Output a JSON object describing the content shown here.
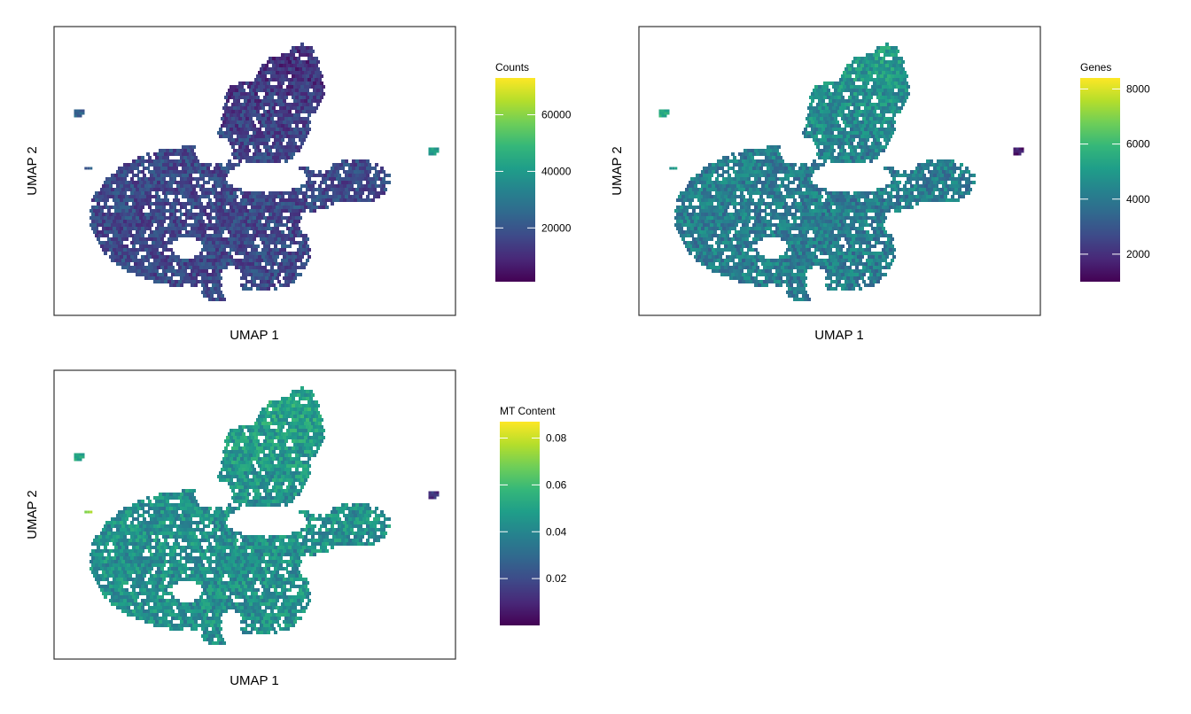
{
  "palette": {
    "viridis": [
      "#440154",
      "#482878",
      "#3e4a89",
      "#31688e",
      "#26828e",
      "#1f9e89",
      "#35b779",
      "#6ece58",
      "#b5de2b",
      "#fde725"
    ],
    "frame": "#333333",
    "tick": "#ffffff"
  },
  "chart_data": [
    {
      "type": "heatmap",
      "subtype": "hexbin-umap",
      "xlabel": "UMAP 1",
      "ylabel": "UMAP 2",
      "legend": {
        "title": "Counts",
        "range": [
          1000,
          73000
        ],
        "ticks": [
          20000,
          40000,
          60000
        ],
        "tick_labels": [
          "20000",
          "40000",
          "60000"
        ]
      },
      "value_profile": {
        "base": 0.22,
        "upper_arm": 0.14,
        "spread": 0.1
      },
      "clusters": [
        {
          "name": "outlier-left-top",
          "mean": 0.32
        },
        {
          "name": "outlier-left-mid",
          "mean": 0.3
        },
        {
          "name": "outlier-right",
          "mean": 0.55
        }
      ]
    },
    {
      "type": "heatmap",
      "subtype": "hexbin-umap",
      "xlabel": "UMAP 1",
      "ylabel": "UMAP 2",
      "legend": {
        "title": "Genes",
        "range": [
          1000,
          8400
        ],
        "ticks": [
          2000,
          4000,
          6000,
          8000
        ],
        "tick_labels": [
          "2000",
          "4000",
          "6000",
          "8000"
        ]
      },
      "value_profile": {
        "base": 0.42,
        "upper_arm": 0.55,
        "spread": 0.12
      },
      "clusters": [
        {
          "name": "outlier-left-top",
          "mean": 0.62
        },
        {
          "name": "outlier-left-mid",
          "mean": 0.55
        },
        {
          "name": "outlier-right",
          "mean": 0.08
        }
      ]
    },
    {
      "type": "heatmap",
      "subtype": "hexbin-umap",
      "xlabel": "UMAP 1",
      "ylabel": "UMAP 2",
      "legend": {
        "title": "MT Content",
        "range": [
          0.0,
          0.087
        ],
        "ticks": [
          0.02,
          0.04,
          0.06,
          0.08
        ],
        "tick_labels": [
          "0.02",
          "0.04",
          "0.06",
          "0.08"
        ]
      },
      "value_profile": {
        "base": 0.5,
        "upper_arm": 0.58,
        "spread": 0.12
      },
      "clusters": [
        {
          "name": "outlier-left-top",
          "mean": 0.6
        },
        {
          "name": "outlier-left-mid",
          "mean": 0.85
        },
        {
          "name": "outlier-right",
          "mean": 0.15
        }
      ]
    }
  ]
}
